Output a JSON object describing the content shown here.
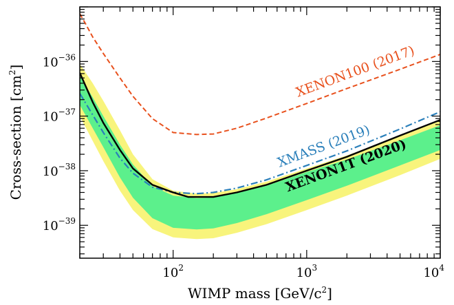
{
  "chart_data": {
    "type": "line",
    "xlabel": "WIMP mass [GeV/c",
    "xlabel_sup": "2",
    "xlabel_end": "]",
    "ylabel": "Cross-section [cm",
    "ylabel_sup": "2",
    "ylabel_end": "]",
    "x_scale": "log",
    "y_scale": "log",
    "xlim": [
      20,
      10000
    ],
    "ylim": [
      2.5e-40,
      1e-35
    ],
    "x_ticks": [
      {
        "base": "10",
        "exp": "2",
        "value": 100
      },
      {
        "base": "10",
        "exp": "3",
        "value": 1000
      },
      {
        "base": "10",
        "exp": "4",
        "value": 10000
      }
    ],
    "y_ticks": [
      {
        "base": "10",
        "exp": "−39",
        "value": 1e-39
      },
      {
        "base": "10",
        "exp": "−38",
        "value": 1e-38
      },
      {
        "base": "10",
        "exp": "−37",
        "value": 1e-37
      },
      {
        "base": "10",
        "exp": "−36",
        "value": 1e-36
      }
    ],
    "bands": [
      {
        "role": "2-sigma",
        "color": "#f8f47c",
        "x": [
          20,
          25,
          30,
          40,
          50,
          70,
          100,
          150,
          200,
          300,
          500,
          1000,
          2000,
          5000,
          10000
        ],
        "upper": [
          9e-37,
          4e-37,
          1.9e-37,
          5.5e-38,
          2e-38,
          7e-39,
          4.3e-39,
          3.8e-39,
          3.9e-39,
          4.6e-39,
          6.3e-39,
          1.1e-38,
          1.9e-38,
          4.3e-38,
          8.2e-38
        ],
        "lower": [
          1e-37,
          3.5e-38,
          1.5e-38,
          4.3e-39,
          1.9e-39,
          8.5e-40,
          6e-40,
          5.6e-40,
          5.8e-40,
          7.3e-40,
          1.05e-39,
          1.9e-39,
          3.5e-39,
          8.3e-39,
          1.65e-38
        ]
      },
      {
        "role": "1-sigma",
        "color": "#5cf08c",
        "x": [
          20,
          25,
          30,
          40,
          50,
          70,
          100,
          150,
          200,
          300,
          500,
          1000,
          2000,
          5000,
          10000
        ],
        "upper": [
          5.5e-37,
          2.2e-37,
          1e-37,
          3e-38,
          1.3e-38,
          5.2e-39,
          3.5e-39,
          3.15e-39,
          3.25e-39,
          3.9e-39,
          5.3e-39,
          9.5e-39,
          1.6e-38,
          3.6e-38,
          6.8e-38
        ],
        "lower": [
          1.6e-37,
          6e-38,
          2.7e-38,
          7.5e-39,
          3.2e-39,
          1.35e-39,
          9e-40,
          8.4e-40,
          8.8e-40,
          1.1e-39,
          1.6e-39,
          2.9e-39,
          5.3e-39,
          1.25e-38,
          2.4e-38
        ]
      }
    ],
    "series": [
      {
        "name": "XENON100 (2017)",
        "color": "#e8501c",
        "style": "dashed",
        "x": [
          20,
          22,
          25,
          30,
          40,
          50,
          70,
          100,
          150,
          200,
          300,
          500,
          1000,
          2000,
          5000,
          10000
        ],
        "y": [
          7.5e-36,
          5e-36,
          2.8e-36,
          1.4e-36,
          5e-37,
          2.3e-37,
          9e-38,
          5e-38,
          4.6e-38,
          4.7e-38,
          6e-38,
          9.2e-38,
          1.7e-37,
          3.2e-37,
          7.2e-37,
          1.35e-36
        ]
      },
      {
        "name": "XMASS (2019)",
        "color": "#2a7fba",
        "style": "dashdot",
        "x": [
          20,
          25,
          30,
          40,
          50,
          70,
          100,
          150,
          200,
          300,
          500,
          1000,
          2000,
          5000,
          10000
        ],
        "y": [
          2.6e-37,
          1.05e-37,
          5e-38,
          1.7e-38,
          9e-39,
          5e-39,
          4e-39,
          3.8e-39,
          4e-39,
          4.8e-39,
          6.8e-39,
          1.25e-38,
          2.3e-38,
          5.8e-38,
          1.2e-37
        ]
      },
      {
        "name": "XENON1T (2020)",
        "color": "#000000",
        "style": "solid",
        "x": [
          20,
          25,
          30,
          40,
          50,
          70,
          100,
          130,
          200,
          300,
          500,
          1000,
          2000,
          5000,
          10000
        ],
        "y": [
          6.2e-37,
          1.8e-37,
          7.5e-38,
          2.4e-38,
          1.1e-38,
          5.5e-39,
          4e-39,
          3.3e-39,
          3.3e-39,
          4e-39,
          5.5e-39,
          1e-38,
          1.8e-38,
          4.4e-38,
          8.5e-38
        ]
      }
    ],
    "annotations": [
      {
        "series": 0,
        "text": "XENON100 (2017)",
        "bold": false
      },
      {
        "series": 1,
        "text": "XMASS (2019)",
        "bold": false
      },
      {
        "series": 2,
        "text": "XENON1T (2020)",
        "bold": true
      }
    ]
  }
}
